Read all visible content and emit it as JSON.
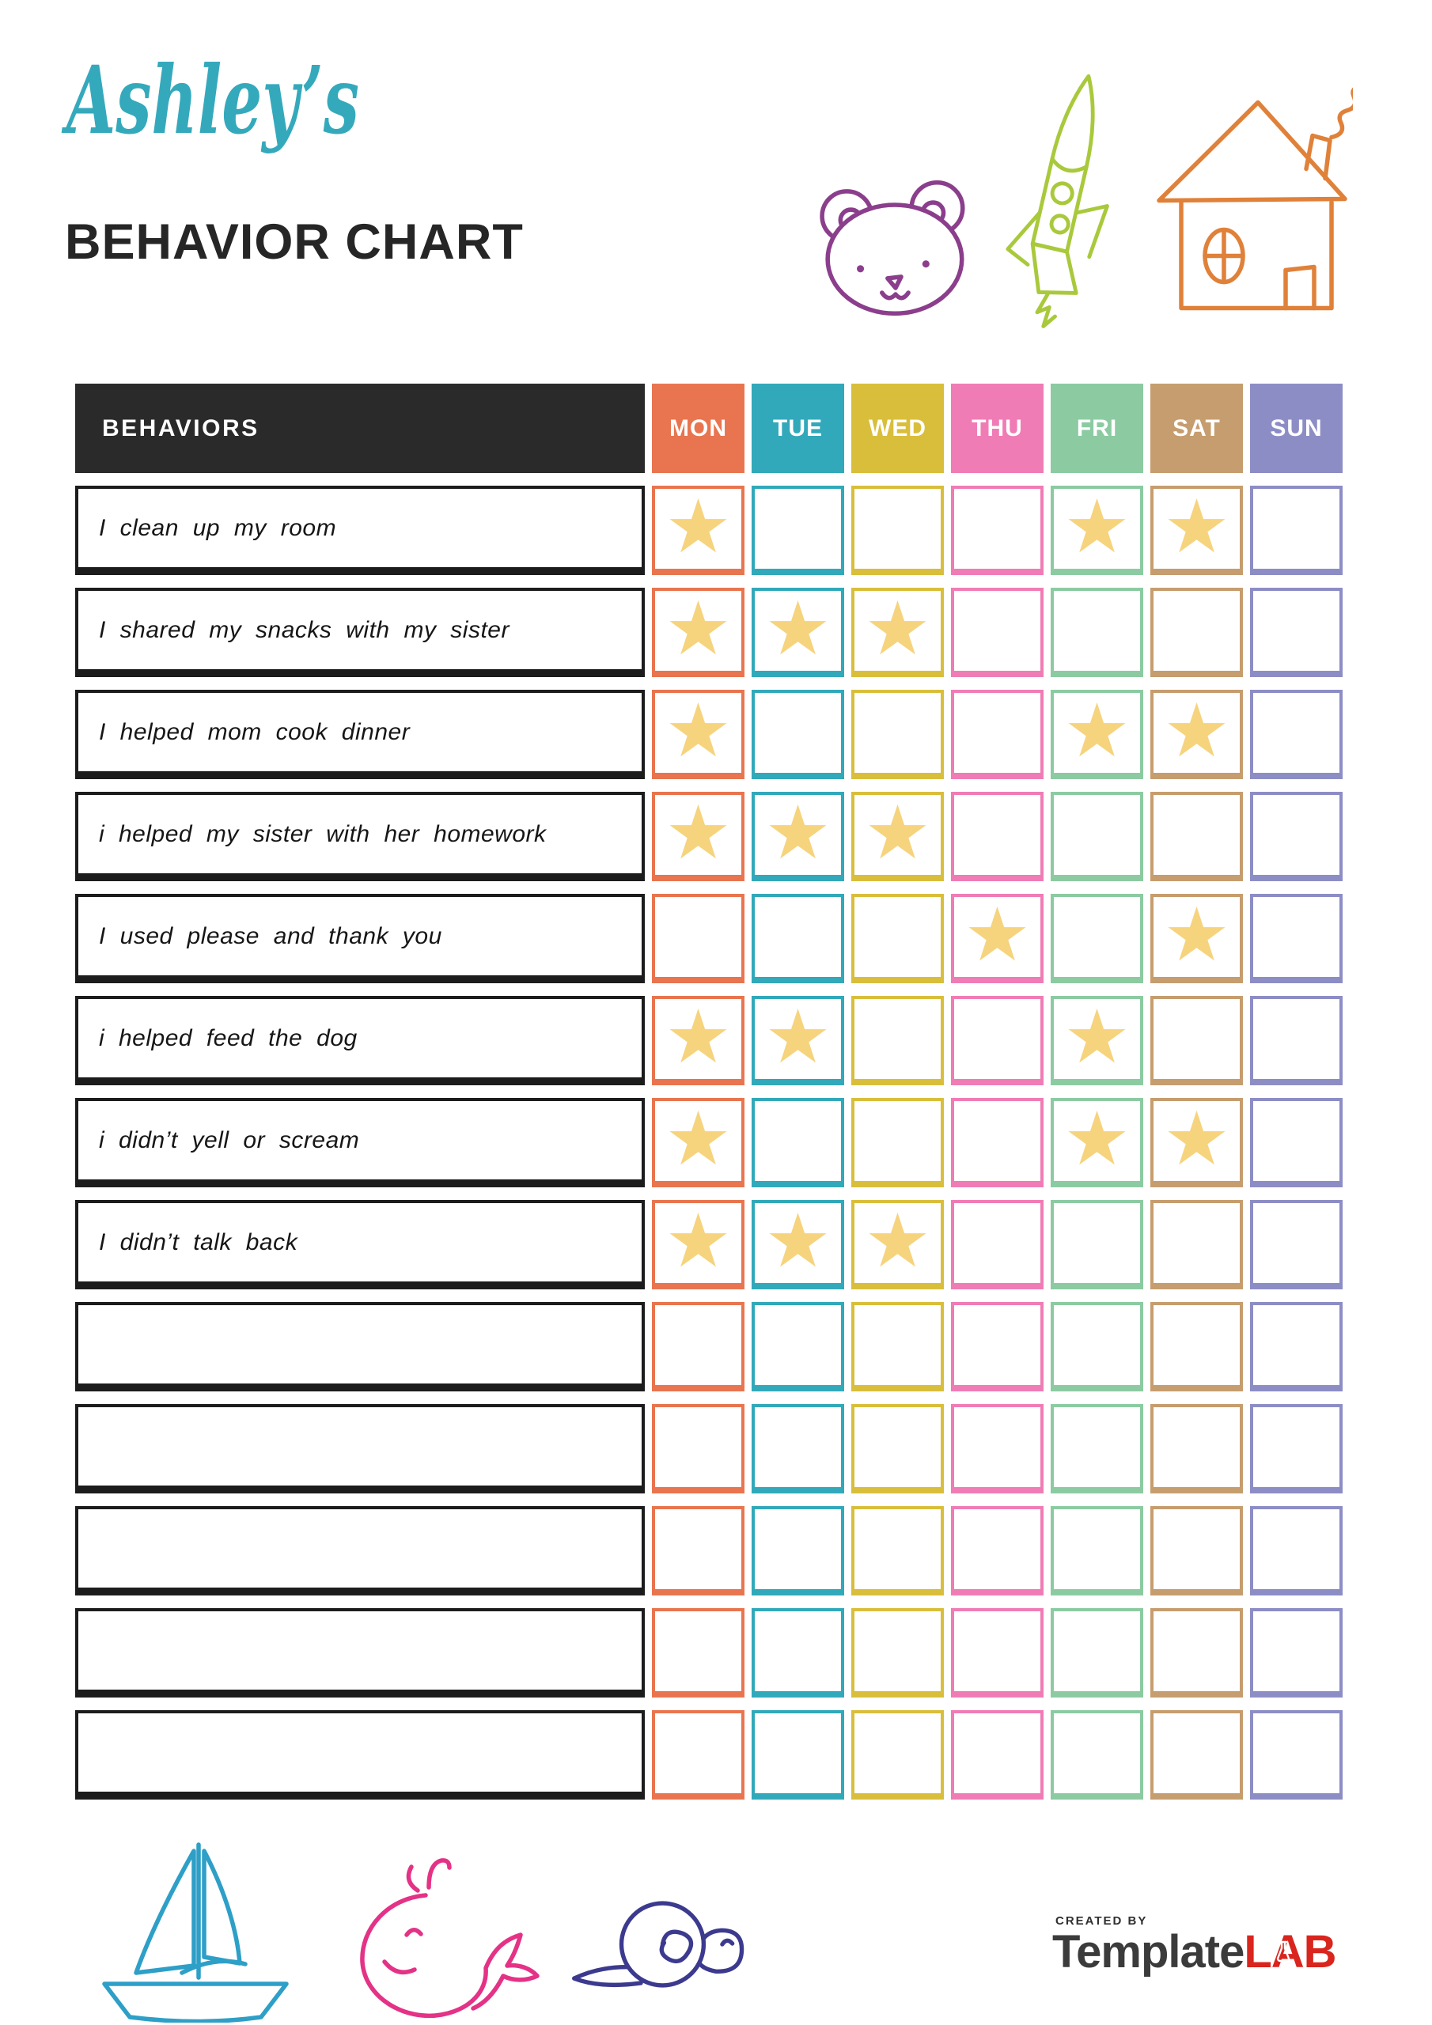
{
  "header": {
    "title_script": "Ashley’s",
    "title_script_color": "#35A9BC",
    "title_main": "BEHAVIOR CHART",
    "title_main_color": "#262626"
  },
  "doodles": {
    "bear": {
      "name": "bear-face-doodle",
      "color": "#8B3E8C"
    },
    "rocket": {
      "name": "rocket-doodle",
      "color": "#A9C93C"
    },
    "house": {
      "name": "house-doodle",
      "color": "#E0813A"
    },
    "sailboat": {
      "name": "sailboat-doodle",
      "color": "#2E9FC7"
    },
    "whale": {
      "name": "whale-doodle",
      "color": "#E43286"
    },
    "snail": {
      "name": "snail-doodle",
      "color": "#3C3A8E"
    }
  },
  "table": {
    "behaviors_header": "BEHAVIORS",
    "header_bg": "#2A2A2A",
    "label_border_color": "#1C1C1C",
    "star_color": "#F6D37D",
    "days": [
      {
        "label": "MON",
        "color": "#E8754F"
      },
      {
        "label": "TUE",
        "color": "#31A9BA"
      },
      {
        "label": "WED",
        "color": "#D9BE3B"
      },
      {
        "label": "THU",
        "color": "#F07CB5"
      },
      {
        "label": "FRI",
        "color": "#8CCBA2"
      },
      {
        "label": "SAT",
        "color": "#C69D6E"
      },
      {
        "label": "SUN",
        "color": "#8D8DC6"
      }
    ],
    "rows": [
      {
        "behavior": "I clean up my room",
        "stars": [
          "MON",
          "FRI",
          "SAT"
        ]
      },
      {
        "behavior": "I shared my snacks with my sister",
        "stars": [
          "MON",
          "TUE",
          "WED"
        ]
      },
      {
        "behavior": "I helped mom cook dinner",
        "stars": [
          "MON",
          "FRI",
          "SAT"
        ]
      },
      {
        "behavior": "i helped my sister with her homework",
        "stars": [
          "MON",
          "TUE",
          "WED"
        ]
      },
      {
        "behavior": "I used please and thank you",
        "stars": [
          "THU",
          "SAT"
        ]
      },
      {
        "behavior": "i helped feed the dog",
        "stars": [
          "MON",
          "TUE",
          "FRI"
        ]
      },
      {
        "behavior": "i didn’t yell or scream",
        "stars": [
          "MON",
          "FRI",
          "SAT"
        ]
      },
      {
        "behavior": "I didn’t talk back",
        "stars": [
          "MON",
          "TUE",
          "WED"
        ]
      },
      {
        "behavior": "",
        "stars": []
      },
      {
        "behavior": "",
        "stars": []
      },
      {
        "behavior": "",
        "stars": []
      },
      {
        "behavior": "",
        "stars": []
      },
      {
        "behavior": "",
        "stars": []
      }
    ]
  },
  "footer": {
    "credit": "CREATED BY",
    "brand_dark": "Template",
    "brand_dark_color": "#3B3B3B",
    "brand_red": "LAB",
    "brand_red_color": "#D9251D"
  }
}
